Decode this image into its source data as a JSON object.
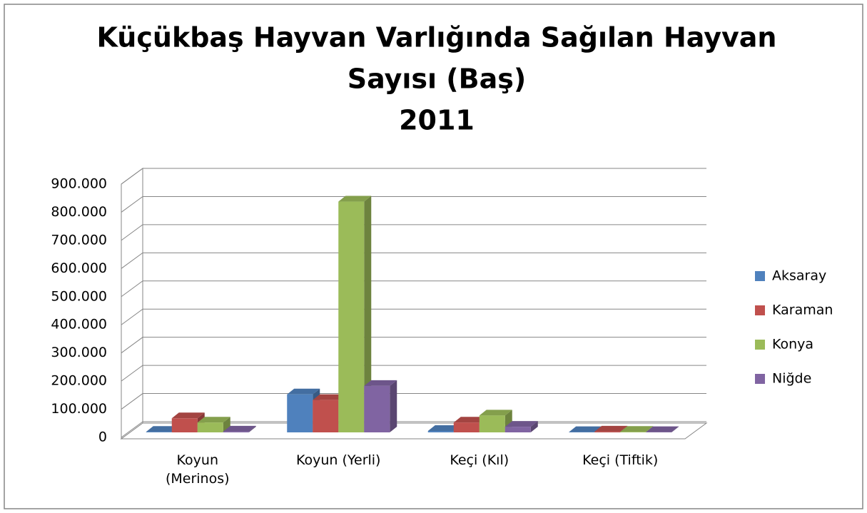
{
  "chart_data": {
    "type": "bar3d",
    "title": [
      "Küçükbaş Hayvan Varlığında Sağılan Hayvan",
      "Sayısı (Baş)",
      "2011"
    ],
    "categories": [
      "Koyun (Merinos)",
      "Koyun (Yerli)",
      "Keçi (Kıl)",
      "Keçi (Tiftik)"
    ],
    "series": [
      {
        "name": "Aksaray",
        "color": "#4f81bd",
        "values": [
          2000,
          135000,
          5000,
          1000
        ]
      },
      {
        "name": "Karaman",
        "color": "#c0504d",
        "values": [
          50000,
          115000,
          35000,
          3000
        ]
      },
      {
        "name": "Konya",
        "color": "#9bbb59",
        "values": [
          35000,
          820000,
          60000,
          2000
        ]
      },
      {
        "name": "Niğde",
        "color": "#8064a2",
        "values": [
          3000,
          165000,
          20000,
          1000
        ]
      }
    ],
    "ylim": [
      0,
      900000
    ],
    "yticks": [
      0,
      {
        "value": 100000,
        "label": "100.000"
      },
      {
        "value": 200000,
        "label": "200.000"
      },
      {
        "value": 300000,
        "label": "300.000"
      },
      {
        "value": 400000,
        "label": "400.000"
      },
      {
        "value": 500000,
        "label": "500.000"
      },
      {
        "value": 600000,
        "label": "600.000"
      },
      {
        "value": 700000,
        "label": "700.000"
      },
      {
        "value": 800000,
        "label": "800.000"
      },
      {
        "value": 900000,
        "label": "900.000"
      }
    ],
    "grid": true,
    "legend": "right"
  }
}
